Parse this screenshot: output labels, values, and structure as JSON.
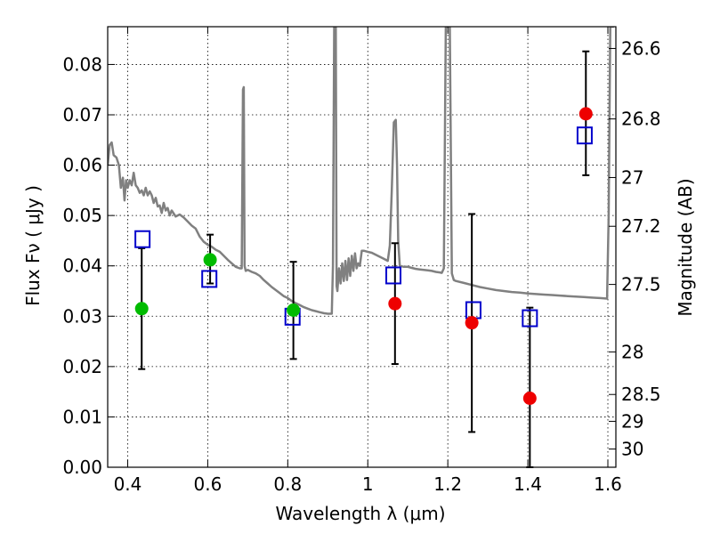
{
  "chart_data": {
    "type": "scatter",
    "xlabel": "Wavelength  λ (μm)",
    "ylabel": "Flux  Fν  ( μJy )",
    "y2label": "Magnitude (AB)",
    "xlim": [
      0.35,
      1.62
    ],
    "ylim": [
      0.0,
      0.0875
    ],
    "xticks": [
      "0.4",
      "0.6",
      "0.8",
      "1",
      "1.2",
      "1.4",
      "1.6"
    ],
    "xtick_values": [
      0.4,
      0.6,
      0.8,
      1.0,
      1.2,
      1.4,
      1.6
    ],
    "yticks": [
      "0.00",
      "0.01",
      "0.02",
      "0.03",
      "0.04",
      "0.05",
      "0.06",
      "0.07",
      "0.08"
    ],
    "ytick_values": [
      0.0,
      0.01,
      0.02,
      0.03,
      0.04,
      0.05,
      0.06,
      0.07,
      0.08
    ],
    "y2ticks": [
      "26.6",
      "26.8",
      "27",
      "27.2",
      "27.5",
      "28",
      "28.5",
      "29",
      "30"
    ],
    "y2tick_mags": [
      26.6,
      26.8,
      27.0,
      27.2,
      27.5,
      28.0,
      28.5,
      29.0,
      30.0
    ],
    "grid": true,
    "colors": {
      "green_points": "#00bb00",
      "red_points": "#ee0000",
      "model_squares": "#0000cc",
      "sed_line": "#808080",
      "error_bars": "#000000"
    },
    "observed_points": [
      {
        "x": 0.435,
        "y": 0.0315,
        "yerr_low": 0.0195,
        "yerr_high": 0.0435,
        "color": "green"
      },
      {
        "x": 0.606,
        "y": 0.0412,
        "yerr_low": 0.0365,
        "yerr_high": 0.0462,
        "color": "green"
      },
      {
        "x": 0.814,
        "y": 0.0312,
        "yerr_low": 0.0215,
        "yerr_high": 0.0408,
        "color": "green"
      },
      {
        "x": 1.068,
        "y": 0.0325,
        "yerr_low": 0.0205,
        "yerr_high": 0.0445,
        "color": "red"
      },
      {
        "x": 1.26,
        "y": 0.0287,
        "yerr_low": 0.007,
        "yerr_high": 0.0503,
        "color": "red"
      },
      {
        "x": 1.405,
        "y": 0.0137,
        "yerr_low": 0.0,
        "yerr_high": 0.0317,
        "color": "red"
      },
      {
        "x": 1.545,
        "y": 0.0702,
        "yerr_low": 0.058,
        "yerr_high": 0.0826,
        "color": "red"
      }
    ],
    "model_points": [
      {
        "x": 0.437,
        "y": 0.0453
      },
      {
        "x": 0.604,
        "y": 0.0374
      },
      {
        "x": 0.812,
        "y": 0.0299
      },
      {
        "x": 1.064,
        "y": 0.0381
      },
      {
        "x": 1.264,
        "y": 0.0312
      },
      {
        "x": 1.405,
        "y": 0.0296
      },
      {
        "x": 1.542,
        "y": 0.0659
      }
    ],
    "sed_line": [
      [
        0.35,
        0.06
      ],
      [
        0.355,
        0.064
      ],
      [
        0.36,
        0.0645
      ],
      [
        0.365,
        0.062
      ],
      [
        0.372,
        0.0615
      ],
      [
        0.378,
        0.06
      ],
      [
        0.383,
        0.0555
      ],
      [
        0.388,
        0.0575
      ],
      [
        0.392,
        0.053
      ],
      [
        0.396,
        0.057
      ],
      [
        0.4,
        0.0555
      ],
      [
        0.405,
        0.057
      ],
      [
        0.41,
        0.056
      ],
      [
        0.415,
        0.0585
      ],
      [
        0.42,
        0.056
      ],
      [
        0.425,
        0.0555
      ],
      [
        0.43,
        0.0545
      ],
      [
        0.435,
        0.055
      ],
      [
        0.44,
        0.054
      ],
      [
        0.445,
        0.0555
      ],
      [
        0.45,
        0.054
      ],
      [
        0.455,
        0.0548
      ],
      [
        0.46,
        0.054
      ],
      [
        0.465,
        0.0525
      ],
      [
        0.47,
        0.0535
      ],
      [
        0.475,
        0.0518
      ],
      [
        0.48,
        0.052
      ],
      [
        0.485,
        0.0505
      ],
      [
        0.49,
        0.0525
      ],
      [
        0.495,
        0.051
      ],
      [
        0.5,
        0.0515
      ],
      [
        0.505,
        0.05
      ],
      [
        0.51,
        0.051
      ],
      [
        0.52,
        0.0498
      ],
      [
        0.53,
        0.0502
      ],
      [
        0.54,
        0.0496
      ],
      [
        0.55,
        0.0488
      ],
      [
        0.56,
        0.048
      ],
      [
        0.57,
        0.0474
      ],
      [
        0.58,
        0.0458
      ],
      [
        0.59,
        0.0448
      ],
      [
        0.6,
        0.0442
      ],
      [
        0.61,
        0.0438
      ],
      [
        0.62,
        0.0432
      ],
      [
        0.63,
        0.0428
      ],
      [
        0.64,
        0.042
      ],
      [
        0.65,
        0.0412
      ],
      [
        0.66,
        0.0405
      ],
      [
        0.67,
        0.0398
      ],
      [
        0.68,
        0.0395
      ],
      [
        0.685,
        0.0395
      ],
      [
        0.688,
        0.075
      ],
      [
        0.69,
        0.0755
      ],
      [
        0.692,
        0.04
      ],
      [
        0.695,
        0.039
      ],
      [
        0.7,
        0.0392
      ],
      [
        0.71,
        0.0388
      ],
      [
        0.72,
        0.0385
      ],
      [
        0.73,
        0.038
      ],
      [
        0.74,
        0.0372
      ],
      [
        0.75,
        0.0365
      ],
      [
        0.76,
        0.0358
      ],
      [
        0.77,
        0.0352
      ],
      [
        0.78,
        0.0346
      ],
      [
        0.79,
        0.034
      ],
      [
        0.8,
        0.0336
      ],
      [
        0.81,
        0.033
      ],
      [
        0.82,
        0.0326
      ],
      [
        0.83,
        0.0322
      ],
      [
        0.84,
        0.0318
      ],
      [
        0.85,
        0.0315
      ],
      [
        0.86,
        0.0312
      ],
      [
        0.87,
        0.031
      ],
      [
        0.88,
        0.0308
      ],
      [
        0.89,
        0.0306
      ],
      [
        0.9,
        0.0305
      ],
      [
        0.91,
        0.0305
      ],
      [
        0.913,
        0.04
      ],
      [
        0.916,
        0.0875
      ],
      [
        0.92,
        0.0875
      ],
      [
        0.922,
        0.036
      ],
      [
        0.924,
        0.035
      ],
      [
        0.928,
        0.0395
      ],
      [
        0.932,
        0.0365
      ],
      [
        0.936,
        0.0405
      ],
      [
        0.94,
        0.037
      ],
      [
        0.944,
        0.041
      ],
      [
        0.948,
        0.0372
      ],
      [
        0.952,
        0.0415
      ],
      [
        0.956,
        0.038
      ],
      [
        0.96,
        0.042
      ],
      [
        0.964,
        0.039
      ],
      [
        0.968,
        0.0425
      ],
      [
        0.972,
        0.0395
      ],
      [
        0.976,
        0.0405
      ],
      [
        0.98,
        0.04
      ],
      [
        0.985,
        0.043
      ],
      [
        0.99,
        0.043
      ],
      [
        1.0,
        0.0428
      ],
      [
        1.01,
        0.0426
      ],
      [
        1.02,
        0.0422
      ],
      [
        1.03,
        0.0418
      ],
      [
        1.04,
        0.0414
      ],
      [
        1.05,
        0.041
      ],
      [
        1.055,
        0.044
      ],
      [
        1.06,
        0.055
      ],
      [
        1.065,
        0.0685
      ],
      [
        1.07,
        0.069
      ],
      [
        1.073,
        0.06
      ],
      [
        1.076,
        0.045
      ],
      [
        1.08,
        0.04
      ],
      [
        1.09,
        0.0398
      ],
      [
        1.1,
        0.0398
      ],
      [
        1.11,
        0.0396
      ],
      [
        1.12,
        0.0394
      ],
      [
        1.13,
        0.0393
      ],
      [
        1.14,
        0.0392
      ],
      [
        1.15,
        0.0391
      ],
      [
        1.16,
        0.039
      ],
      [
        1.17,
        0.0388
      ],
      [
        1.18,
        0.0387
      ],
      [
        1.185,
        0.0386
      ],
      [
        1.19,
        0.0395
      ],
      [
        1.195,
        0.0875
      ],
      [
        1.205,
        0.0875
      ],
      [
        1.21,
        0.0385
      ],
      [
        1.215,
        0.0372
      ],
      [
        1.22,
        0.037
      ],
      [
        1.24,
        0.0366
      ],
      [
        1.26,
        0.0362
      ],
      [
        1.28,
        0.0358
      ],
      [
        1.3,
        0.0355
      ],
      [
        1.32,
        0.0352
      ],
      [
        1.34,
        0.035
      ],
      [
        1.36,
        0.0348
      ],
      [
        1.38,
        0.0347
      ],
      [
        1.4,
        0.0345
      ],
      [
        1.42,
        0.0344
      ],
      [
        1.44,
        0.0343
      ],
      [
        1.46,
        0.0342
      ],
      [
        1.48,
        0.0341
      ],
      [
        1.5,
        0.034
      ],
      [
        1.52,
        0.0339
      ],
      [
        1.54,
        0.0338
      ],
      [
        1.56,
        0.0337
      ],
      [
        1.58,
        0.0336
      ],
      [
        1.598,
        0.0335
      ],
      [
        1.602,
        0.05
      ],
      [
        1.606,
        0.0875
      ],
      [
        1.612,
        0.0875
      ],
      [
        1.615,
        0.0875
      ]
    ]
  }
}
